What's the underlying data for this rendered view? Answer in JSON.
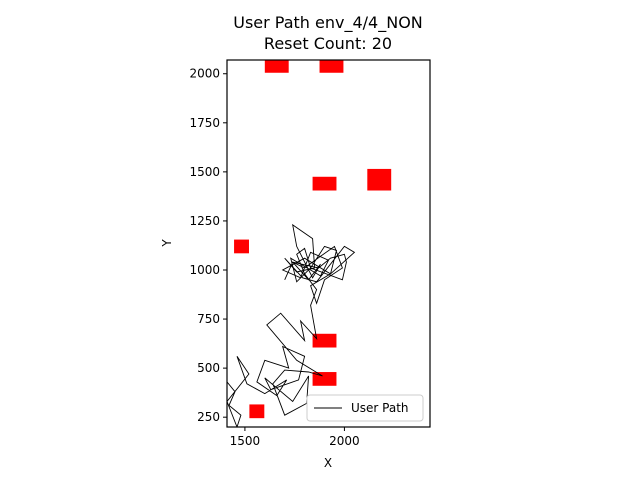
{
  "chart_data": {
    "type": "line",
    "title_line1": "User Path env_4/4_NON",
    "title_line2": "Reset Count: 20",
    "xlabel": "X",
    "ylabel": "Y",
    "xlim": [
      1410,
      2430
    ],
    "ylim": [
      200,
      2070
    ],
    "x_ticks": [
      1500,
      2000
    ],
    "x_tick_labels": [
      "1500",
      "2000"
    ],
    "y_ticks": [
      250,
      500,
      750,
      1000,
      1250,
      1500,
      1750,
      2000
    ],
    "y_tick_labels": [
      "250",
      "500",
      "750",
      "1000",
      "1250",
      "1500",
      "1750",
      "2000"
    ],
    "legend": {
      "label": "User Path",
      "position": "lower right"
    },
    "line_color": "#000000",
    "obstacle_color": "#ff0000",
    "obstacles": [
      {
        "x": 1660,
        "y": 2040,
        "w": 120,
        "h": 70
      },
      {
        "x": 1935,
        "y": 2040,
        "w": 120,
        "h": 70
      },
      {
        "x": 2175,
        "y": 1460,
        "w": 120,
        "h": 110
      },
      {
        "x": 1900,
        "y": 1440,
        "w": 120,
        "h": 70
      },
      {
        "x": 1483,
        "y": 1120,
        "w": 75,
        "h": 70
      },
      {
        "x": 1900,
        "y": 640,
        "w": 120,
        "h": 70
      },
      {
        "x": 1900,
        "y": 445,
        "w": 120,
        "h": 70
      },
      {
        "x": 1560,
        "y": 280,
        "w": 75,
        "h": 70
      }
    ],
    "path": [
      [
        1410,
        430
      ],
      [
        1450,
        380
      ],
      [
        1420,
        310
      ],
      [
        1480,
        260
      ],
      [
        1460,
        200
      ],
      [
        1410,
        330
      ],
      [
        1520,
        470
      ],
      [
        1460,
        560
      ],
      [
        1510,
        420
      ],
      [
        1600,
        370
      ],
      [
        1710,
        440
      ],
      [
        1660,
        360
      ],
      [
        1560,
        430
      ],
      [
        1600,
        540
      ],
      [
        1720,
        500
      ],
      [
        1690,
        610
      ],
      [
        1800,
        560
      ],
      [
        1770,
        440
      ],
      [
        1630,
        390
      ],
      [
        1600,
        450
      ],
      [
        1740,
        330
      ],
      [
        1820,
        460
      ],
      [
        1810,
        320
      ],
      [
        1700,
        260
      ],
      [
        1640,
        420
      ],
      [
        1700,
        490
      ],
      [
        1820,
        480
      ],
      [
        1890,
        460
      ],
      [
        1760,
        540
      ],
      [
        1610,
        720
      ],
      [
        1680,
        780
      ],
      [
        1800,
        640
      ],
      [
        1780,
        740
      ],
      [
        1860,
        650
      ],
      [
        1830,
        820
      ],
      [
        1860,
        900
      ],
      [
        1800,
        980
      ],
      [
        1760,
        1080
      ],
      [
        1800,
        1110
      ],
      [
        1830,
        1010
      ],
      [
        1760,
        940
      ],
      [
        1730,
        1060
      ],
      [
        1880,
        970
      ],
      [
        1920,
        1050
      ],
      [
        1830,
        1090
      ],
      [
        1780,
        960
      ],
      [
        1690,
        1000
      ],
      [
        1800,
        1060
      ],
      [
        1930,
        980
      ],
      [
        1960,
        1100
      ],
      [
        1900,
        1120
      ],
      [
        1830,
        1010
      ],
      [
        1990,
        950
      ],
      [
        2010,
        1040
      ],
      [
        2000,
        1080
      ],
      [
        1930,
        1060
      ],
      [
        1870,
        1010
      ],
      [
        1740,
        1040
      ],
      [
        1820,
        950
      ],
      [
        1880,
        1030
      ],
      [
        1840,
        960
      ],
      [
        1760,
        1120
      ],
      [
        1740,
        1230
      ],
      [
        1840,
        1160
      ],
      [
        1850,
        1010
      ],
      [
        1760,
        990
      ],
      [
        1700,
        1060
      ],
      [
        1790,
        960
      ],
      [
        1860,
        940
      ],
      [
        2000,
        1120
      ],
      [
        2050,
        1090
      ],
      [
        1930,
        980
      ],
      [
        1830,
        920
      ],
      [
        1860,
        830
      ],
      [
        1900,
        950
      ],
      [
        1990,
        1010
      ],
      [
        1950,
        1120
      ],
      [
        1880,
        1070
      ],
      [
        1800,
        1010
      ],
      [
        1740,
        1040
      ],
      [
        1700,
        950
      ]
    ]
  }
}
